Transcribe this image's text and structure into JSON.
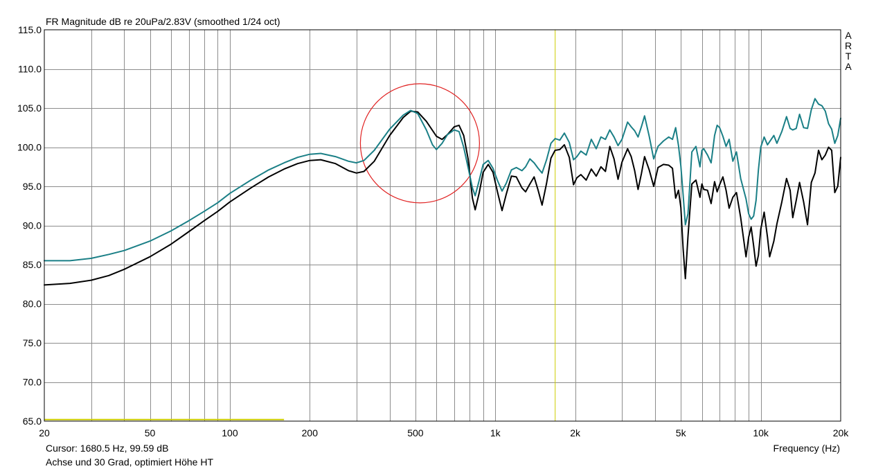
{
  "chart_data": {
    "type": "line",
    "title": "FR Magnitude dB re 20uPa/2.83V (smoothed 1/24 oct)",
    "xlabel": "Frequency (Hz)",
    "ylabel": "",
    "x_scale": "log",
    "xlim": [
      20,
      20000
    ],
    "ylim": [
      65,
      115
    ],
    "grid": true,
    "y_ticks": [
      "65.0",
      "70.0",
      "75.0",
      "80.0",
      "85.0",
      "90.0",
      "95.0",
      "100.0",
      "105.0",
      "110.0",
      "115.0"
    ],
    "x_ticks": [
      {
        "value": 20,
        "label": "20"
      },
      {
        "value": 50,
        "label": "50"
      },
      {
        "value": 100,
        "label": "100"
      },
      {
        "value": 200,
        "label": "200"
      },
      {
        "value": 500,
        "label": "500"
      },
      {
        "value": 1000,
        "label": "1k"
      },
      {
        "value": 2000,
        "label": "2k"
      },
      {
        "value": 5000,
        "label": "5k"
      },
      {
        "value": 10000,
        "label": "10k"
      },
      {
        "value": 20000,
        "label": "20k"
      }
    ],
    "brand": "ARTA",
    "cursor": {
      "frequency": 1680.5,
      "level": 99.59,
      "label": "Cursor:  1680.5 Hz, 99.59 dB",
      "color": "#cccc00"
    },
    "note": "Achse und 30 Grad, optimiert Höhe HT",
    "reference_line": {
      "level": 65.2,
      "x_range": [
        20,
        160
      ],
      "color": "#cccc00"
    },
    "highlight_circle": {
      "center_frequency": 520,
      "center_level": 100.5,
      "color": "#e02020"
    },
    "series": [
      {
        "color": "#000000",
        "points": [
          [
            20,
            82.4
          ],
          [
            25,
            82.6
          ],
          [
            30,
            83.0
          ],
          [
            35,
            83.6
          ],
          [
            40,
            84.4
          ],
          [
            50,
            86.0
          ],
          [
            60,
            87.6
          ],
          [
            70,
            89.2
          ],
          [
            80,
            90.6
          ],
          [
            90,
            91.8
          ],
          [
            100,
            93.0
          ],
          [
            120,
            94.8
          ],
          [
            140,
            96.2
          ],
          [
            160,
            97.2
          ],
          [
            180,
            97.9
          ],
          [
            200,
            98.3
          ],
          [
            220,
            98.4
          ],
          [
            250,
            97.9
          ],
          [
            280,
            97.0
          ],
          [
            300,
            96.7
          ],
          [
            320,
            96.9
          ],
          [
            350,
            98.2
          ],
          [
            400,
            101.5
          ],
          [
            450,
            103.8
          ],
          [
            480,
            104.6
          ],
          [
            510,
            104.5
          ],
          [
            550,
            103.3
          ],
          [
            600,
            101.4
          ],
          [
            630,
            101.0
          ],
          [
            660,
            101.6
          ],
          [
            700,
            102.6
          ],
          [
            730,
            102.8
          ],
          [
            760,
            101.5
          ],
          [
            790,
            98.5
          ],
          [
            820,
            93.5
          ],
          [
            840,
            92.0
          ],
          [
            870,
            94.2
          ],
          [
            900,
            96.8
          ],
          [
            940,
            97.8
          ],
          [
            980,
            96.8
          ],
          [
            1020,
            94.2
          ],
          [
            1060,
            91.9
          ],
          [
            1100,
            94.0
          ],
          [
            1150,
            96.3
          ],
          [
            1200,
            96.2
          ],
          [
            1260,
            94.8
          ],
          [
            1300,
            94.3
          ],
          [
            1350,
            95.3
          ],
          [
            1400,
            96.2
          ],
          [
            1450,
            94.5
          ],
          [
            1500,
            92.6
          ],
          [
            1560,
            95.4
          ],
          [
            1620,
            98.6
          ],
          [
            1680,
            99.6
          ],
          [
            1750,
            99.7
          ],
          [
            1820,
            100.3
          ],
          [
            1900,
            98.7
          ],
          [
            1970,
            95.2
          ],
          [
            2030,
            96.1
          ],
          [
            2100,
            96.5
          ],
          [
            2200,
            95.8
          ],
          [
            2300,
            97.2
          ],
          [
            2400,
            96.3
          ],
          [
            2500,
            97.5
          ],
          [
            2600,
            96.9
          ],
          [
            2700,
            100.1
          ],
          [
            2800,
            98.5
          ],
          [
            2900,
            95.9
          ],
          [
            3000,
            98.1
          ],
          [
            3150,
            99.8
          ],
          [
            3250,
            98.8
          ],
          [
            3350,
            97.0
          ],
          [
            3450,
            94.6
          ],
          [
            3550,
            96.6
          ],
          [
            3650,
            98.8
          ],
          [
            3800,
            97.1
          ],
          [
            3950,
            95.0
          ],
          [
            4100,
            97.4
          ],
          [
            4300,
            97.8
          ],
          [
            4500,
            97.7
          ],
          [
            4650,
            97.3
          ],
          [
            4780,
            93.5
          ],
          [
            4900,
            94.5
          ],
          [
            5000,
            92.3
          ],
          [
            5100,
            87.0
          ],
          [
            5200,
            83.2
          ],
          [
            5320,
            88.6
          ],
          [
            5500,
            95.3
          ],
          [
            5700,
            95.8
          ],
          [
            5900,
            93.6
          ],
          [
            6000,
            95.3
          ],
          [
            6100,
            94.6
          ],
          [
            6300,
            94.5
          ],
          [
            6500,
            92.8
          ],
          [
            6700,
            95.6
          ],
          [
            6850,
            94.3
          ],
          [
            7000,
            95.2
          ],
          [
            7200,
            96.2
          ],
          [
            7400,
            94.5
          ],
          [
            7600,
            92.2
          ],
          [
            7850,
            93.6
          ],
          [
            8100,
            94.2
          ],
          [
            8400,
            91.0
          ],
          [
            8800,
            86.0
          ],
          [
            9000,
            88.5
          ],
          [
            9200,
            89.8
          ],
          [
            9400,
            87.4
          ],
          [
            9600,
            84.8
          ],
          [
            9800,
            86.2
          ],
          [
            10000,
            89.5
          ],
          [
            10300,
            91.7
          ],
          [
            10600,
            88.5
          ],
          [
            10800,
            86.0
          ],
          [
            11200,
            88.0
          ],
          [
            11500,
            90.2
          ],
          [
            12000,
            93.0
          ],
          [
            12500,
            96.0
          ],
          [
            12900,
            94.5
          ],
          [
            13200,
            91.0
          ],
          [
            13600,
            93.2
          ],
          [
            14000,
            95.5
          ],
          [
            14500,
            93.0
          ],
          [
            15000,
            90.1
          ],
          [
            15500,
            95.5
          ],
          [
            16000,
            96.7
          ],
          [
            16500,
            99.6
          ],
          [
            17000,
            98.4
          ],
          [
            17500,
            99.0
          ],
          [
            18000,
            100.0
          ],
          [
            18500,
            99.6
          ],
          [
            19000,
            94.2
          ],
          [
            19500,
            95.0
          ],
          [
            20000,
            98.7
          ]
        ]
      },
      {
        "color": "#1a7f86",
        "points": [
          [
            20,
            85.5
          ],
          [
            25,
            85.5
          ],
          [
            30,
            85.8
          ],
          [
            35,
            86.3
          ],
          [
            40,
            86.8
          ],
          [
            50,
            88.0
          ],
          [
            60,
            89.3
          ],
          [
            70,
            90.6
          ],
          [
            80,
            91.8
          ],
          [
            90,
            92.9
          ],
          [
            100,
            94.1
          ],
          [
            120,
            95.8
          ],
          [
            140,
            97.1
          ],
          [
            160,
            98.0
          ],
          [
            180,
            98.7
          ],
          [
            200,
            99.1
          ],
          [
            220,
            99.2
          ],
          [
            250,
            98.8
          ],
          [
            280,
            98.2
          ],
          [
            300,
            98.0
          ],
          [
            320,
            98.3
          ],
          [
            350,
            99.6
          ],
          [
            400,
            102.3
          ],
          [
            450,
            104.1
          ],
          [
            480,
            104.7
          ],
          [
            510,
            104.3
          ],
          [
            550,
            102.2
          ],
          [
            580,
            100.3
          ],
          [
            600,
            99.7
          ],
          [
            630,
            100.5
          ],
          [
            660,
            101.6
          ],
          [
            700,
            102.2
          ],
          [
            730,
            102.0
          ],
          [
            760,
            100.0
          ],
          [
            790,
            97.4
          ],
          [
            820,
            94.8
          ],
          [
            840,
            93.8
          ],
          [
            870,
            95.8
          ],
          [
            900,
            97.8
          ],
          [
            940,
            98.3
          ],
          [
            980,
            97.3
          ],
          [
            1020,
            95.7
          ],
          [
            1060,
            94.4
          ],
          [
            1100,
            95.4
          ],
          [
            1150,
            97.1
          ],
          [
            1200,
            97.4
          ],
          [
            1260,
            97.0
          ],
          [
            1300,
            97.5
          ],
          [
            1350,
            98.5
          ],
          [
            1400,
            98.0
          ],
          [
            1450,
            97.3
          ],
          [
            1500,
            96.7
          ],
          [
            1560,
            98.4
          ],
          [
            1620,
            100.5
          ],
          [
            1680,
            101.1
          ],
          [
            1750,
            100.9
          ],
          [
            1820,
            101.8
          ],
          [
            1900,
            100.6
          ],
          [
            1970,
            98.4
          ],
          [
            2030,
            98.8
          ],
          [
            2100,
            99.5
          ],
          [
            2200,
            99.0
          ],
          [
            2300,
            101.0
          ],
          [
            2400,
            99.8
          ],
          [
            2500,
            101.3
          ],
          [
            2600,
            101.0
          ],
          [
            2700,
            102.2
          ],
          [
            2800,
            101.3
          ],
          [
            2900,
            100.2
          ],
          [
            3000,
            101.0
          ],
          [
            3150,
            103.2
          ],
          [
            3250,
            102.6
          ],
          [
            3350,
            102.1
          ],
          [
            3450,
            101.3
          ],
          [
            3550,
            102.6
          ],
          [
            3650,
            104.0
          ],
          [
            3800,
            101.4
          ],
          [
            3950,
            98.5
          ],
          [
            4100,
            100.1
          ],
          [
            4300,
            100.8
          ],
          [
            4500,
            101.3
          ],
          [
            4650,
            101.0
          ],
          [
            4780,
            102.5
          ],
          [
            4900,
            100.2
          ],
          [
            5000,
            97.6
          ],
          [
            5100,
            93.9
          ],
          [
            5200,
            90.1
          ],
          [
            5320,
            91.5
          ],
          [
            5500,
            99.4
          ],
          [
            5700,
            100.1
          ],
          [
            5900,
            97.5
          ],
          [
            6000,
            99.6
          ],
          [
            6100,
            99.8
          ],
          [
            6300,
            99.0
          ],
          [
            6500,
            98.0
          ],
          [
            6700,
            101.5
          ],
          [
            6850,
            102.8
          ],
          [
            7000,
            102.5
          ],
          [
            7200,
            101.4
          ],
          [
            7400,
            100.1
          ],
          [
            7600,
            101.0
          ],
          [
            7850,
            98.2
          ],
          [
            8100,
            99.4
          ],
          [
            8400,
            96.0
          ],
          [
            8800,
            93.4
          ],
          [
            9000,
            91.5
          ],
          [
            9200,
            90.8
          ],
          [
            9400,
            91.2
          ],
          [
            9600,
            93.2
          ],
          [
            9800,
            97.1
          ],
          [
            10000,
            100.0
          ],
          [
            10300,
            101.3
          ],
          [
            10600,
            100.3
          ],
          [
            10800,
            100.7
          ],
          [
            11200,
            101.5
          ],
          [
            11500,
            100.5
          ],
          [
            12000,
            102.0
          ],
          [
            12500,
            103.9
          ],
          [
            12900,
            102.4
          ],
          [
            13200,
            102.2
          ],
          [
            13600,
            102.4
          ],
          [
            14000,
            104.2
          ],
          [
            14500,
            102.5
          ],
          [
            15000,
            102.4
          ],
          [
            15500,
            104.8
          ],
          [
            16000,
            106.2
          ],
          [
            16500,
            105.5
          ],
          [
            17000,
            105.3
          ],
          [
            17500,
            104.6
          ],
          [
            18000,
            103.0
          ],
          [
            18500,
            102.3
          ],
          [
            19000,
            100.5
          ],
          [
            19500,
            101.5
          ],
          [
            20000,
            103.7
          ]
        ]
      }
    ]
  }
}
